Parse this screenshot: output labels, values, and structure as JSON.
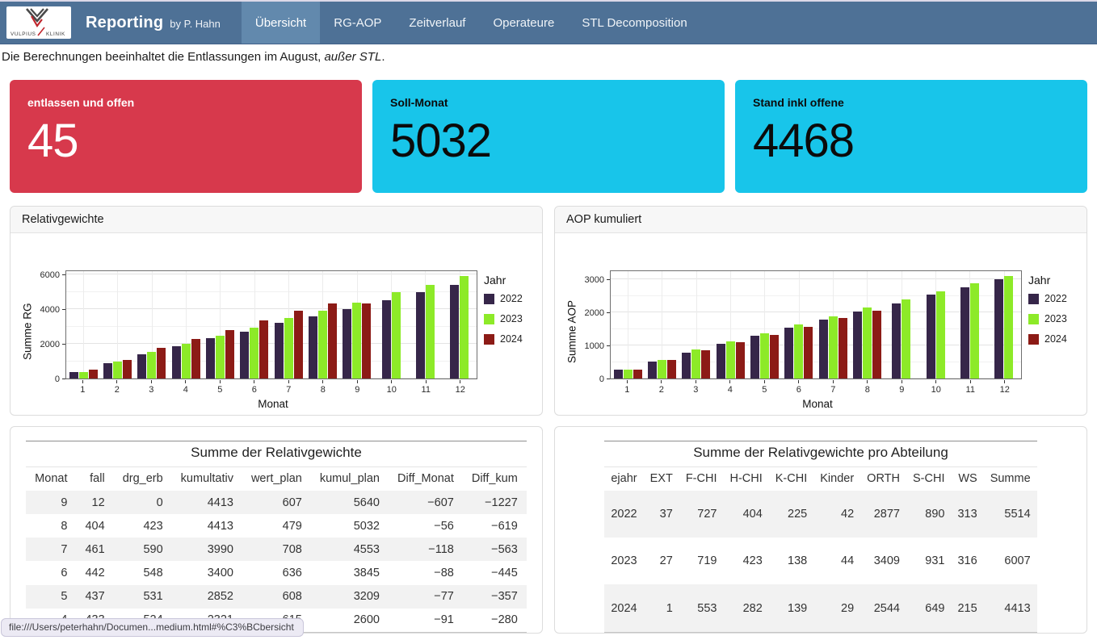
{
  "navbar": {
    "logo": {
      "top_text": "VULPIUS",
      "bottom_text": "KLINIK"
    },
    "brand_title": "Reporting",
    "brand_subtitle": "by P. Hahn",
    "items": [
      {
        "label": "Übersicht",
        "active": true
      },
      {
        "label": "RG-AOP",
        "active": false
      },
      {
        "label": "Zeitverlauf",
        "active": false
      },
      {
        "label": "Operateure",
        "active": false
      },
      {
        "label": "STL Decomposition",
        "active": false
      }
    ]
  },
  "note": {
    "main": "Die Berechnungen beeinhaltet die Entlassungen im August, ",
    "italic": "außer STL",
    "end": "."
  },
  "kpis": [
    {
      "label": "entlassen und offen",
      "value": "45",
      "bg": "#d7394c",
      "fg": "#ffffff"
    },
    {
      "label": "Soll-Monat",
      "value": "5032",
      "bg": "#18c5ea",
      "fg": "#0b0b0b"
    },
    {
      "label": "Stand inkl offene",
      "value": "4468",
      "bg": "#18c5ea",
      "fg": "#0b0b0b"
    }
  ],
  "chart_data": [
    {
      "type": "bar",
      "title": "Relativgewichte",
      "xlabel": "Monat",
      "ylabel": "Summe RG",
      "legend_title": "Jahr",
      "legend_position": "right",
      "grid": true,
      "x": [
        1,
        2,
        3,
        4,
        5,
        6,
        7,
        8,
        9,
        10,
        11,
        12
      ],
      "yticks": [
        0,
        2000,
        4000,
        6000
      ],
      "ylim": [
        0,
        6300
      ],
      "series": [
        {
          "name": "2022",
          "color": "#362649",
          "values": [
            400,
            900,
            1425,
            1875,
            2350,
            2725,
            3275,
            3650,
            4075,
            4600,
            5075,
            5500
          ]
        },
        {
          "name": "2023",
          "color": "#8dea28",
          "values": [
            400,
            975,
            1550,
            2025,
            2500,
            3000,
            3550,
            3975,
            4475,
            5050,
            5500,
            6000
          ]
        },
        {
          "name": "2024",
          "color": "#8c1b16",
          "values": [
            500,
            1100,
            1800,
            2300,
            2850,
            3400,
            3990,
            4413,
            4413,
            null,
            null,
            null
          ]
        }
      ]
    },
    {
      "type": "bar",
      "title": "AOP kumuliert",
      "xlabel": "Monat",
      "ylabel": "Summe AOP",
      "legend_title": "Jahr",
      "legend_position": "right",
      "grid": true,
      "x": [
        1,
        2,
        3,
        4,
        5,
        6,
        7,
        8,
        9,
        10,
        11,
        12
      ],
      "yticks": [
        0,
        1000,
        2000,
        3000
      ],
      "ylim": [
        0,
        3300
      ],
      "series": [
        {
          "name": "2022",
          "color": "#362649",
          "values": [
            270,
            510,
            800,
            1060,
            1310,
            1570,
            1820,
            2050,
            2320,
            2570,
            2810,
            3050
          ]
        },
        {
          "name": "2023",
          "color": "#8dea28",
          "values": [
            275,
            560,
            890,
            1130,
            1400,
            1660,
            1920,
            2190,
            2430,
            2670,
            2930,
            3160
          ]
        },
        {
          "name": "2024",
          "color": "#8c1b16",
          "values": [
            280,
            580,
            860,
            1120,
            1350,
            1580,
            1850,
            2080,
            null,
            null,
            null,
            null
          ]
        }
      ]
    }
  ],
  "tables": [
    {
      "title": "Summe der Relativgewichte",
      "columns": [
        "Monat",
        "fall",
        "drg_erb",
        "kumultativ",
        "wert_plan",
        "kumul_plan",
        "Diff_Monat",
        "Diff_kum"
      ],
      "rows": [
        [
          "9",
          "12",
          "0",
          "4413",
          "607",
          "5640",
          "−607",
          "−1227"
        ],
        [
          "8",
          "404",
          "423",
          "4413",
          "479",
          "5032",
          "−56",
          "−619"
        ],
        [
          "7",
          "461",
          "590",
          "3990",
          "708",
          "4553",
          "−118",
          "−563"
        ],
        [
          "6",
          "442",
          "548",
          "3400",
          "636",
          "3845",
          "−88",
          "−445"
        ],
        [
          "5",
          "437",
          "531",
          "2852",
          "608",
          "3209",
          "−77",
          "−357"
        ],
        [
          "4",
          "433",
          "524",
          "2321",
          "615",
          "2600",
          "−91",
          "−280"
        ]
      ]
    },
    {
      "title": "Summe der Relativgewichte pro Abteilung",
      "columns": [
        "ejahr",
        "EXT",
        "F-CHI",
        "H-CHI",
        "K-CHI",
        "Kinder",
        "ORTH",
        "S-CHI",
        "WS",
        "Summe"
      ],
      "rows": [
        [
          "2022",
          "37",
          "727",
          "404",
          "225",
          "42",
          "2877",
          "890",
          "313",
          "5514"
        ],
        [
          "2023",
          "27",
          "719",
          "423",
          "138",
          "44",
          "3409",
          "931",
          "316",
          "6007"
        ],
        [
          "2024",
          "1",
          "553",
          "282",
          "139",
          "29",
          "2544",
          "649",
          "215",
          "4413"
        ]
      ]
    }
  ],
  "statusbar": {
    "url": "file:///Users/peterhahn/Documen...medium.html#%C3%BCbersicht"
  }
}
